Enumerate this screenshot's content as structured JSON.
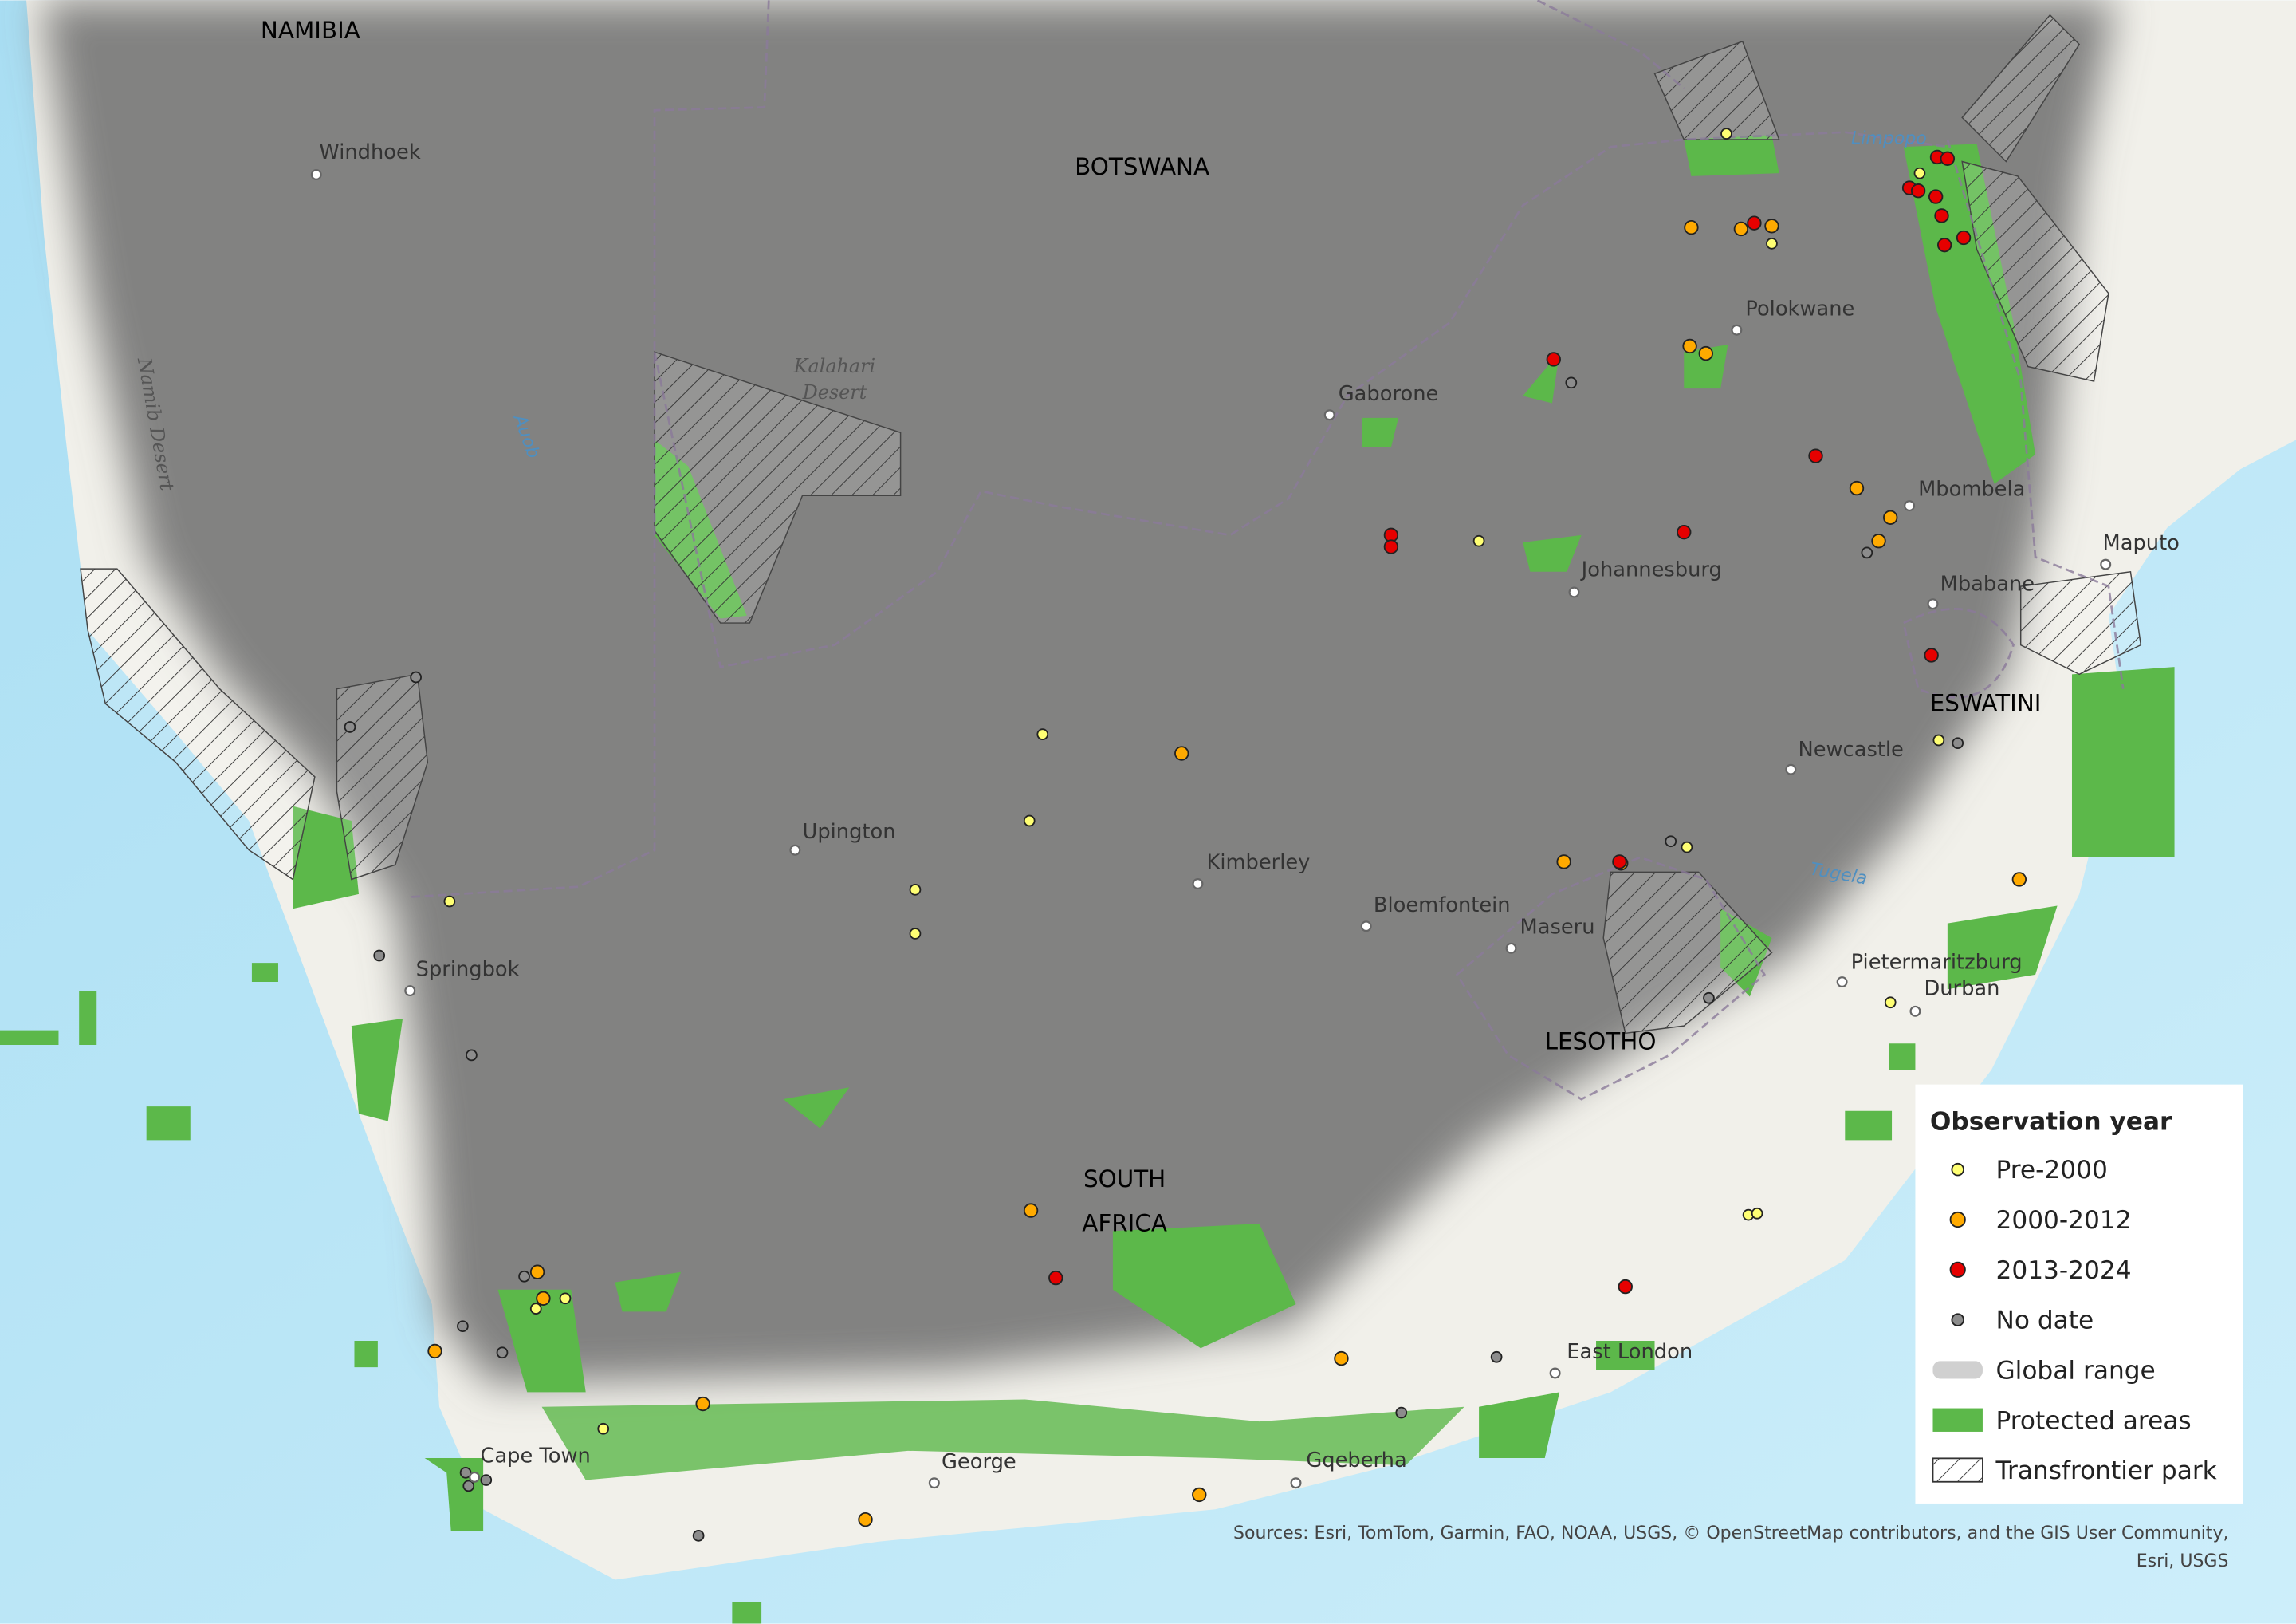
{
  "map": {
    "countries": [
      {
        "lines": [
          "NAMIBIA"
        ]
      },
      {
        "lines": [
          "BOTSWANA"
        ]
      },
      {
        "lines": [
          "SOUTH",
          "AFRICA"
        ]
      },
      {
        "lines": [
          "ESWATINI"
        ]
      },
      {
        "lines": [
          "LESOTHO"
        ]
      }
    ],
    "cities": [
      "Windhoek",
      "Gaborone",
      "Polokwane",
      "Mbombela",
      "Maputo",
      "Johannesburg",
      "Mbabane",
      "Newcastle",
      "Upington",
      "Kimberley",
      "Bloemfontein",
      "Maseru",
      "Pietermaritzburg",
      "Durban",
      "Springbok",
      "East London",
      "Cape Town",
      "George",
      "Gqeberha"
    ],
    "features": [
      {
        "lines": [
          "Kalahari",
          "Desert"
        ]
      },
      {
        "lines": [
          "Namib Desert"
        ]
      },
      {
        "lines": [
          "Auob"
        ]
      },
      {
        "lines": [
          "Limpopo"
        ]
      },
      {
        "lines": [
          "Tugela"
        ]
      }
    ],
    "legend": {
      "title": "Observation year",
      "items": [
        {
          "label": "Pre-2000",
          "color": "#ffff73"
        },
        {
          "label": "2000-2012",
          "color": "#ffaa00"
        },
        {
          "label": "2013-2024",
          "color": "#e60000"
        },
        {
          "label": "No date",
          "color": "#8c8c8c"
        },
        {
          "label": "Global range",
          "color": "#d0d0d0"
        },
        {
          "label": "Protected areas",
          "color": "#5cb84a"
        },
        {
          "label": "Transfrontier park",
          "color": "#ffffff"
        }
      ]
    },
    "attribution": {
      "lines": [
        "Sources: Esri, TomTom, Garmin, FAO, NOAA, USGS, © OpenStreetMap contributors, and the GIS User Community,",
        "Esri, USGS"
      ]
    }
  }
}
